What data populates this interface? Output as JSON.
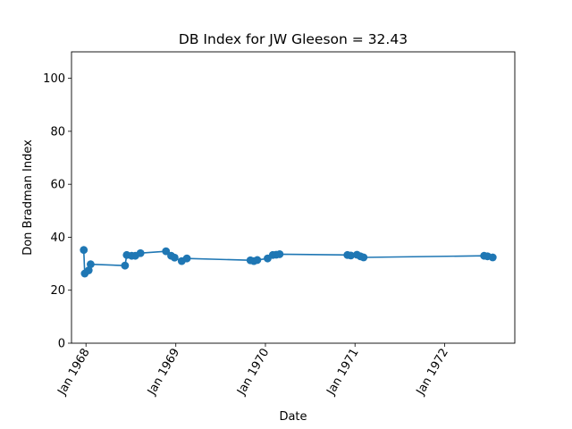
{
  "chart_data": {
    "type": "line",
    "title": "DB Index for JW Gleeson = 32.43",
    "xlabel": "Date",
    "ylabel": "Don Bradman Index",
    "xlim": [
      "1967-11-03",
      "1972-10-13"
    ],
    "ylim": [
      0,
      110
    ],
    "y_ticks": [
      0,
      20,
      40,
      60,
      80,
      100
    ],
    "x_ticks": [
      {
        "date": "1968-01-01",
        "label": "Jan 1968"
      },
      {
        "date": "1969-01-01",
        "label": "Jan 1969"
      },
      {
        "date": "1970-01-01",
        "label": "Jan 1970"
      },
      {
        "date": "1971-01-01",
        "label": "Jan 1971"
      },
      {
        "date": "1972-01-01",
        "label": "Jan 1972"
      }
    ],
    "grid": false,
    "color": "#1f77b4",
    "marker": "circle",
    "series": [
      {
        "x": [
          "1967-12-23",
          "1967-12-27",
          "1968-01-12",
          "1968-01-20",
          "1968-06-08",
          "1968-06-15",
          "1968-07-05",
          "1968-07-20",
          "1968-08-10",
          "1968-11-22",
          "1968-12-13",
          "1968-12-27",
          "1969-01-25",
          "1969-02-15",
          "1969-11-01",
          "1969-11-15",
          "1969-11-29",
          "1970-01-10",
          "1970-01-31",
          "1970-02-14",
          "1970-02-28",
          "1970-12-01",
          "1970-12-15",
          "1971-01-09",
          "1971-01-23",
          "1971-02-05",
          "1972-06-10",
          "1972-06-24",
          "1972-07-15"
        ],
        "y": [
          35.2,
          26.3,
          27.5,
          29.8,
          29.3,
          33.3,
          33.0,
          33.0,
          34.0,
          34.7,
          33.0,
          32.3,
          31.0,
          32.0,
          31.3,
          31.0,
          31.4,
          32.0,
          33.3,
          33.4,
          33.6,
          33.3,
          33.1,
          33.4,
          32.8,
          32.4,
          33.0,
          32.8,
          32.4
        ]
      }
    ]
  }
}
